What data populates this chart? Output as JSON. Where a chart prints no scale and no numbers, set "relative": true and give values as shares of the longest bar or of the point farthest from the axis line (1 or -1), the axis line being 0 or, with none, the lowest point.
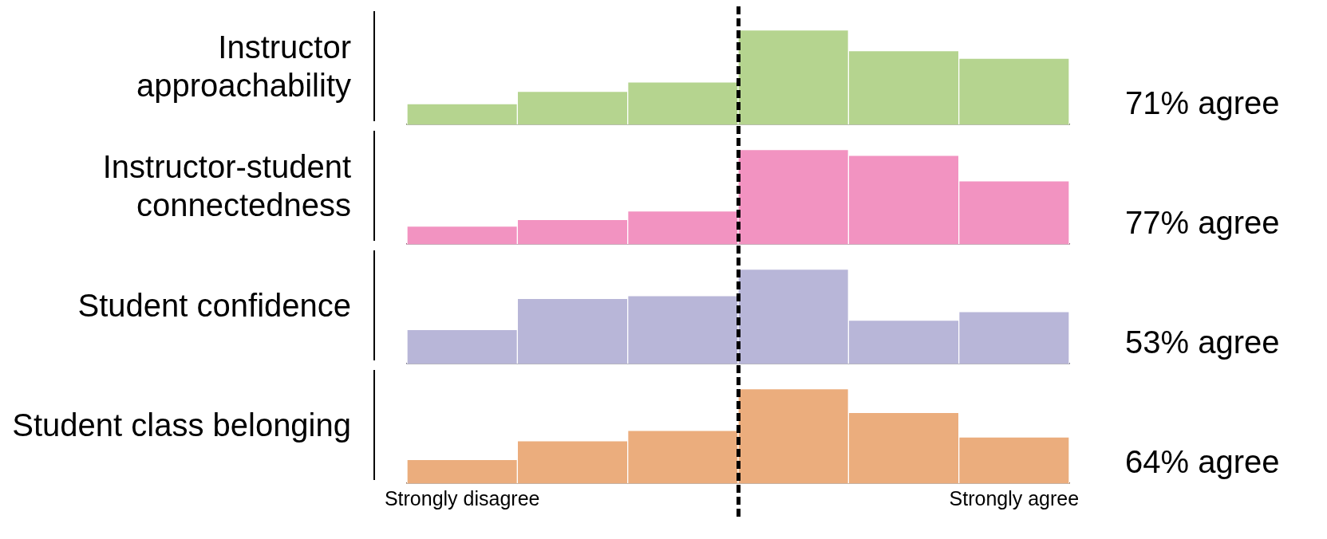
{
  "chart_data": [
    {
      "type": "bar",
      "ylabel": "Instructor approachability",
      "relative": true,
      "categories": [
        null,
        null,
        null,
        null,
        null,
        null
      ],
      "grid": false,
      "color": "#b5d48f",
      "values": [
        0.22,
        0.35,
        0.45,
        1,
        0.78,
        0.7
      ],
      "annotations": [
        "71% agree"
      ]
    },
    {
      "type": "bar",
      "ylabel": "Instructor-student connectedness",
      "relative": true,
      "categories": [
        null,
        null,
        null,
        null,
        null,
        null
      ],
      "grid": false,
      "color": "#f293c1",
      "values": [
        0.19,
        0.26,
        0.35,
        1,
        0.94,
        0.67
      ],
      "annotations": [
        "77% agree"
      ]
    },
    {
      "type": "bar",
      "ylabel": "Student confidence",
      "relative": true,
      "categories": [
        null,
        null,
        null,
        null,
        null,
        null
      ],
      "grid": false,
      "color": "#b8b6d8",
      "values": [
        0.36,
        0.69,
        0.72,
        1,
        0.46,
        0.55
      ],
      "annotations": [
        "53% agree"
      ]
    },
    {
      "type": "bar",
      "ylabel": "Student class belonging",
      "relative": true,
      "categories": [
        "Strongly disagree",
        null,
        null,
        null,
        null,
        "Strongly agree"
      ],
      "grid": false,
      "color": "#ebad7d",
      "values": [
        0.25,
        0.45,
        0.56,
        1,
        0.75,
        0.49
      ],
      "annotations": [
        "64% agree"
      ]
    }
  ]
}
